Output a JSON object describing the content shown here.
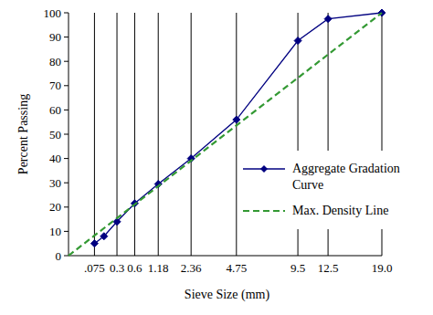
{
  "chart_data": {
    "type": "line",
    "x_label": "Sieve Size (mm)",
    "y_label": "Percent Passing",
    "xlim": [
      0,
      19.0
    ],
    "ylim": [
      0,
      100
    ],
    "xticks": [
      {
        "value": 0.075,
        "label": ".075"
      },
      0.3,
      0.6,
      1.18,
      2.36,
      4.75,
      9.5,
      12.5,
      {
        "value": 19.0,
        "label": "19.0"
      }
    ],
    "yticks": [
      0,
      10,
      20,
      30,
      40,
      50,
      60,
      70,
      80,
      90,
      100
    ],
    "grid": true,
    "legend": "right",
    "series": [
      {
        "name": "Aggregate Gradation Curve",
        "color": "#000080",
        "marker": "diamond",
        "line_style": "solid",
        "x": [
          0.075,
          0.15,
          0.3,
          0.6,
          1.18,
          2.36,
          4.75,
          9.5,
          12.5,
          19.0
        ],
        "values": [
          5,
          8,
          14,
          21.5,
          29.5,
          40,
          56,
          88.5,
          97.5,
          100
        ]
      },
      {
        "name": "Max. Density Line",
        "color": "#339933",
        "marker": "none",
        "line_style": "dashed",
        "x": [
          0,
          19.0
        ],
        "values": [
          0,
          100
        ]
      }
    ]
  }
}
